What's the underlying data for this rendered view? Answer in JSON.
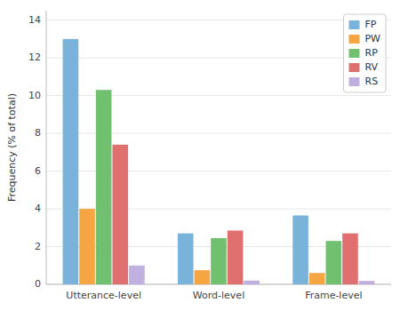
{
  "chart_data": {
    "type": "bar",
    "ylabel": "Frequency (% of total)",
    "categories": [
      "Utterance-level",
      "Word-level",
      "Frame-level"
    ],
    "series": [
      {
        "name": "FP",
        "color": "#7ab3d9",
        "values": [
          13.0,
          2.7,
          3.65
        ]
      },
      {
        "name": "PW",
        "color": "#f5a642",
        "values": [
          4.0,
          0.75,
          0.6
        ]
      },
      {
        "name": "RP",
        "color": "#70c070",
        "values": [
          10.3,
          2.45,
          2.3
        ]
      },
      {
        "name": "RV",
        "color": "#e07070",
        "values": [
          7.4,
          2.85,
          2.7
        ]
      },
      {
        "name": "RS",
        "color": "#c0b0e0",
        "values": [
          1.0,
          0.2,
          0.18
        ]
      }
    ],
    "ylim": [
      0,
      14.5
    ],
    "yticks": [
      0,
      2,
      4,
      6,
      8,
      10,
      12,
      14
    ],
    "grid": true,
    "legend": "upper right"
  }
}
